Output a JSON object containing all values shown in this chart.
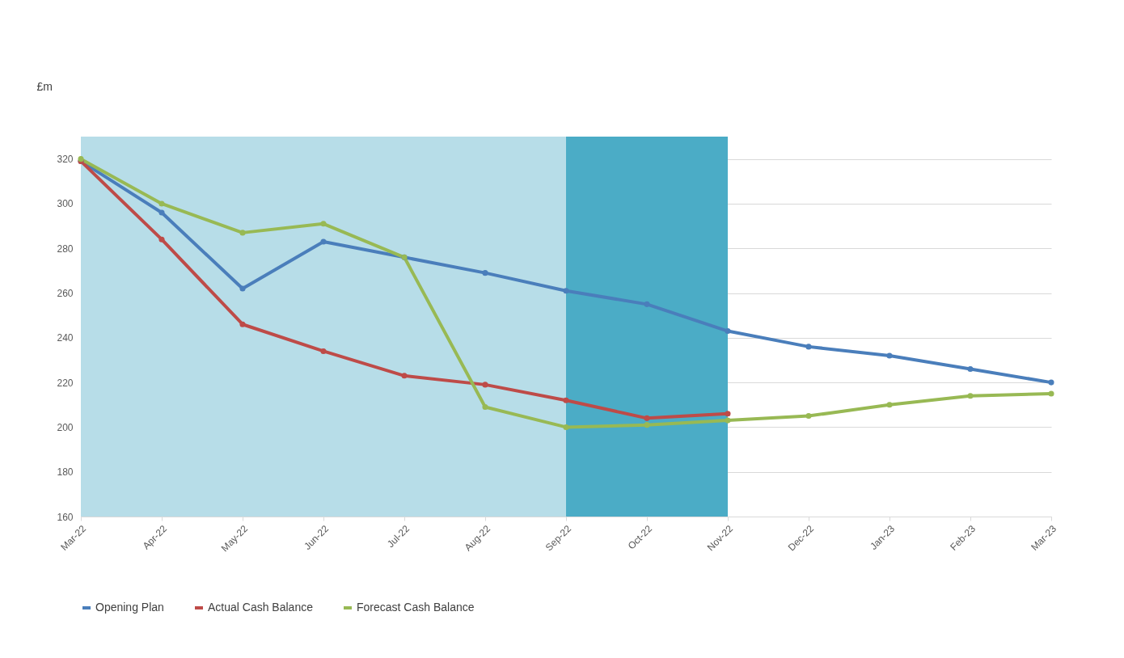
{
  "chart_data": {
    "type": "line",
    "ylabel": "£m",
    "categories": [
      "Mar-22",
      "Apr-22",
      "May-22",
      "Jun-22",
      "Jul-22",
      "Aug-22",
      "Sep-22",
      "Oct-22",
      "Nov-22",
      "Dec-22",
      "Jan-23",
      "Feb-23",
      "Mar-23"
    ],
    "series": [
      {
        "name": "Opening Plan",
        "color": "#4a7ebb",
        "values": [
          319,
          296,
          262,
          283,
          276,
          269,
          261,
          255,
          243,
          236,
          232,
          226,
          220
        ]
      },
      {
        "name": "Actual Cash Balance",
        "color": "#be4b48",
        "values": [
          319,
          284,
          246,
          234,
          223,
          219,
          212,
          204,
          206,
          null,
          null,
          null,
          null
        ]
      },
      {
        "name": "Forecast Cash Balance",
        "color": "#98b954",
        "values": [
          320,
          300,
          287,
          291,
          276,
          209,
          200,
          201,
          203,
          205,
          210,
          214,
          215
        ]
      }
    ],
    "bands": [
      {
        "axis": "x",
        "from": "Mar-22",
        "to": "Sep-22",
        "color": "#b7dde8"
      },
      {
        "axis": "x",
        "from": "Sep-22",
        "to": "Nov-22",
        "color": "#4bacc6"
      }
    ],
    "ylim": [
      160,
      330
    ],
    "yticks": [
      160,
      180,
      200,
      220,
      240,
      260,
      280,
      300,
      320
    ],
    "grid": "y",
    "legend": "bottom",
    "marker": "circle",
    "line_style": "solid"
  }
}
